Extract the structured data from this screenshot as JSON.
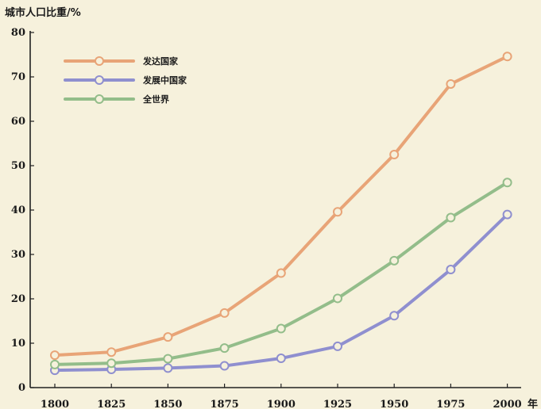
{
  "chart_data": {
    "type": "line",
    "ylabel": "城市人口比重/%",
    "xlabel": "年",
    "x": [
      "1800",
      "1825",
      "1850",
      "1875",
      "1900",
      "1925",
      "1950",
      "1975",
      "2000"
    ],
    "ylim": [
      0,
      80
    ],
    "yticks": [
      0,
      10,
      20,
      30,
      40,
      50,
      60,
      70,
      80
    ],
    "grid": false,
    "legend_position": "top-left",
    "series": [
      {
        "name": "发达国家",
        "color": "#e8a477",
        "values": [
          7.3,
          8.0,
          11.4,
          16.8,
          25.8,
          39.6,
          52.5,
          68.4,
          74.6
        ]
      },
      {
        "name": "发展中国家",
        "color": "#8f8fcf",
        "values": [
          3.9,
          4.1,
          4.4,
          4.9,
          6.6,
          9.3,
          16.2,
          26.6,
          39.0
        ]
      },
      {
        "name": "全世界",
        "color": "#93bd8a",
        "values": [
          5.2,
          5.5,
          6.5,
          8.9,
          13.3,
          20.1,
          28.6,
          38.3,
          46.2
        ]
      }
    ]
  }
}
